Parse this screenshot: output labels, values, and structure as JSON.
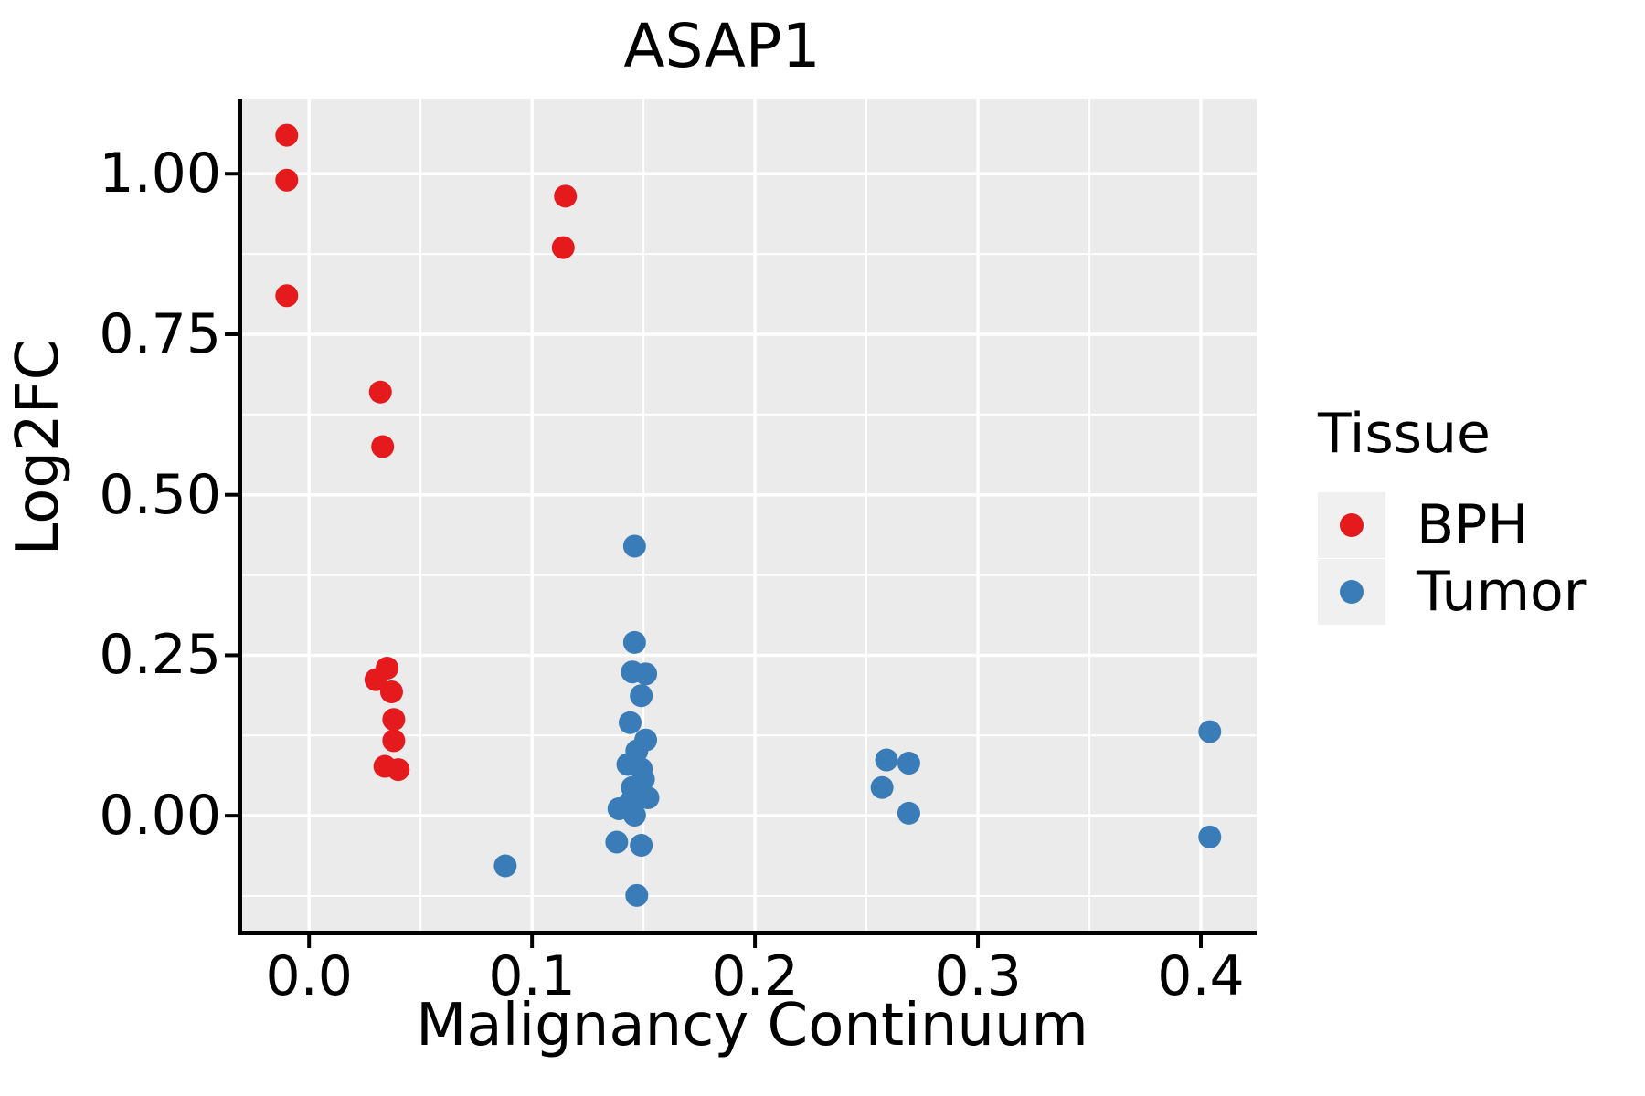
{
  "chart_data": {
    "type": "scatter",
    "title": "ASAP1",
    "xlabel": "Malignancy Continuum",
    "ylabel": "Log2FC",
    "xlim": [
      -0.03,
      0.425
    ],
    "ylim": [
      -0.179,
      1.117
    ],
    "x_ticks": {
      "values": [
        0.0,
        0.1,
        0.2,
        0.3,
        0.4
      ],
      "labels": [
        "0.0",
        "0.1",
        "0.2",
        "0.3",
        "0.4"
      ]
    },
    "y_ticks": {
      "values": [
        0.0,
        0.25,
        0.5,
        0.75,
        1.0
      ],
      "labels": [
        "0.00",
        "0.25",
        "0.50",
        "0.75",
        "1.00"
      ]
    },
    "x_minor": [
      0.05,
      0.15,
      0.25,
      0.35
    ],
    "y_minor": [
      -0.125,
      0.125,
      0.375,
      0.625,
      0.875
    ],
    "grid": true,
    "panel_bg": "#EBEBEB",
    "grid_color": "#FFFFFF",
    "axis_color": "#000000",
    "point_radius": 12.5,
    "legend": {
      "title": "Tissue",
      "position": "right",
      "items": [
        {
          "label": "BPH",
          "color": "#E41A1C"
        },
        {
          "label": "Tumor",
          "color": "#3A7CB8"
        }
      ]
    },
    "series": [
      {
        "name": "BPH",
        "color": "#E41A1C",
        "points": [
          [
            -0.01,
            1.06
          ],
          [
            -0.01,
            0.99
          ],
          [
            -0.01,
            0.81
          ],
          [
            0.032,
            0.66
          ],
          [
            0.033,
            0.575
          ],
          [
            0.115,
            0.965
          ],
          [
            0.114,
            0.885
          ],
          [
            0.035,
            0.23
          ],
          [
            0.03,
            0.212
          ],
          [
            0.037,
            0.193
          ],
          [
            0.038,
            0.15
          ],
          [
            0.038,
            0.117
          ],
          [
            0.034,
            0.077
          ],
          [
            0.04,
            0.072
          ]
        ]
      },
      {
        "name": "Tumor",
        "color": "#3A7CB8",
        "points": [
          [
            0.146,
            0.42
          ],
          [
            0.146,
            0.27
          ],
          [
            0.145,
            0.224
          ],
          [
            0.151,
            0.221
          ],
          [
            0.149,
            0.187
          ],
          [
            0.144,
            0.145
          ],
          [
            0.151,
            0.118
          ],
          [
            0.147,
            0.101
          ],
          [
            0.143,
            0.08
          ],
          [
            0.149,
            0.073
          ],
          [
            0.15,
            0.057
          ],
          [
            0.145,
            0.044
          ],
          [
            0.152,
            0.028
          ],
          [
            0.144,
            0.021
          ],
          [
            0.139,
            0.011
          ],
          [
            0.146,
            0.001
          ],
          [
            0.138,
            -0.041
          ],
          [
            0.149,
            -0.046
          ],
          [
            0.147,
            -0.124
          ],
          [
            0.088,
            -0.078
          ],
          [
            0.259,
            0.087
          ],
          [
            0.269,
            0.082
          ],
          [
            0.257,
            0.044
          ],
          [
            0.269,
            0.004
          ],
          [
            0.404,
            0.131
          ],
          [
            0.404,
            -0.033
          ]
        ]
      }
    ]
  }
}
